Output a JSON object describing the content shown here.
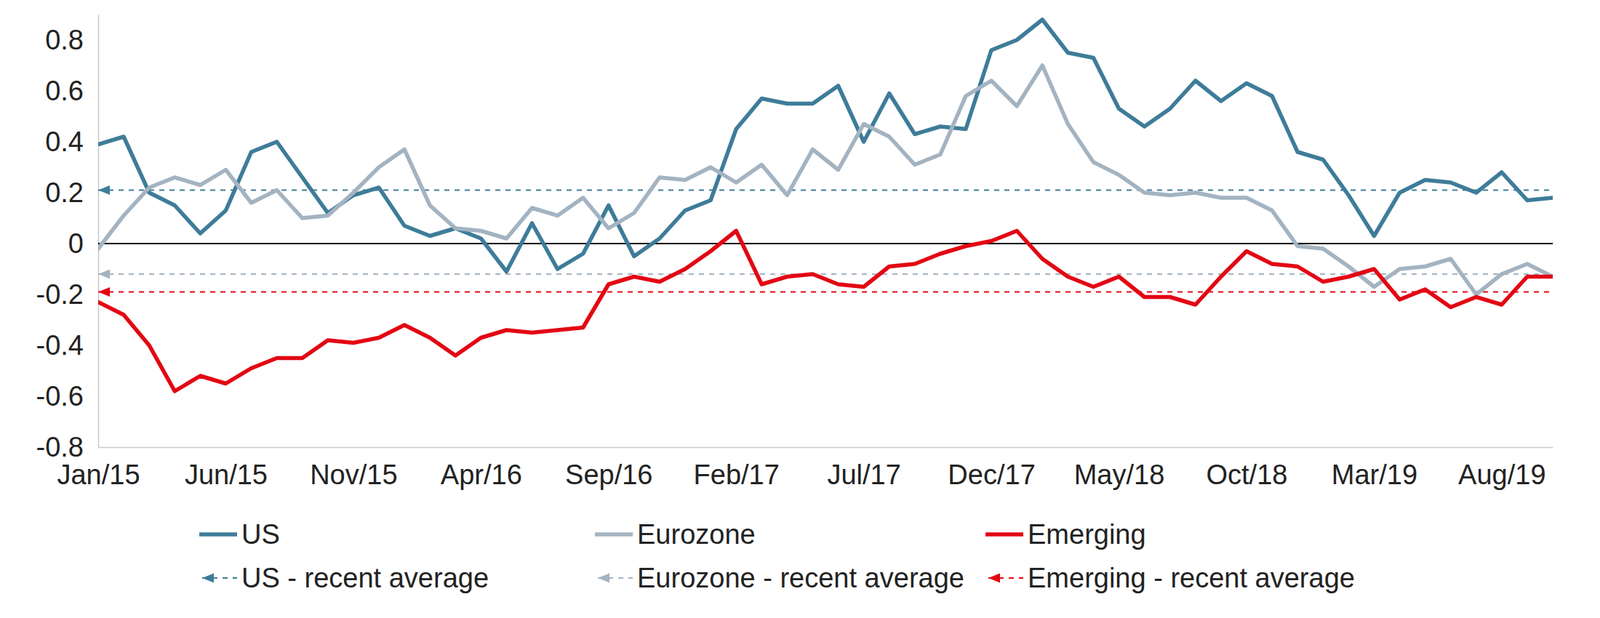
{
  "chart_data": {
    "type": "line",
    "categories": [
      "Jan/15",
      null,
      null,
      null,
      null,
      "Jun/15",
      null,
      null,
      null,
      null,
      "Nov/15",
      null,
      null,
      null,
      null,
      "Apr/16",
      null,
      null,
      null,
      null,
      "Sep/16",
      null,
      null,
      null,
      null,
      "Feb/17",
      null,
      null,
      null,
      null,
      "Jul/17",
      null,
      null,
      null,
      null,
      "Dec/17",
      null,
      null,
      null,
      null,
      "May/18",
      null,
      null,
      null,
      null,
      "Oct/18",
      null,
      null,
      null,
      null,
      "Mar/19",
      null,
      null,
      null,
      null,
      "Aug/19",
      null,
      null
    ],
    "ylim": [
      -0.8,
      0.9
    ],
    "yticks": [
      -0.8,
      -0.6,
      -0.4,
      -0.2,
      0,
      0.2,
      0.4,
      0.6,
      0.8
    ],
    "grid": false,
    "legend": "bottom",
    "series": [
      {
        "name": "US",
        "color": "#3e7c99",
        "line_style": "solid",
        "marker": "none",
        "values": [
          0.39,
          0.42,
          0.2,
          0.15,
          0.04,
          0.13,
          0.36,
          0.4,
          0.26,
          0.12,
          0.19,
          0.22,
          0.07,
          0.03,
          0.06,
          0.02,
          -0.11,
          0.08,
          -0.1,
          -0.04,
          0.15,
          -0.05,
          0.02,
          0.13,
          0.17,
          0.45,
          0.57,
          0.55,
          0.55,
          0.62,
          0.4,
          0.59,
          0.43,
          0.46,
          0.45,
          0.76,
          0.8,
          0.88,
          0.75,
          0.73,
          0.53,
          0.46,
          0.53,
          0.64,
          0.56,
          0.63,
          0.58,
          0.36,
          0.33,
          0.19,
          0.03,
          0.2,
          0.25,
          0.24,
          0.2,
          0.28,
          0.17,
          0.18
        ]
      },
      {
        "name": "Eurozone",
        "color": "#a3b3c1",
        "line_style": "solid",
        "marker": "none",
        "values": [
          -0.02,
          0.11,
          0.22,
          0.26,
          0.23,
          0.29,
          0.16,
          0.21,
          0.1,
          0.11,
          0.2,
          0.3,
          0.37,
          0.15,
          0.06,
          0.05,
          0.02,
          0.14,
          0.11,
          0.18,
          0.06,
          0.12,
          0.26,
          0.25,
          0.3,
          0.24,
          0.31,
          0.19,
          0.37,
          0.29,
          0.47,
          0.42,
          0.31,
          0.35,
          0.58,
          0.64,
          0.54,
          0.7,
          0.47,
          0.32,
          0.27,
          0.2,
          0.19,
          0.2,
          0.18,
          0.18,
          0.13,
          -0.01,
          -0.02,
          -0.09,
          -0.17,
          -0.1,
          -0.09,
          -0.06,
          -0.2,
          -0.12,
          -0.08,
          -0.13
        ]
      },
      {
        "name": "Emerging",
        "color": "#e30613",
        "line_style": "solid",
        "marker": "none",
        "values": [
          -0.23,
          -0.28,
          -0.4,
          -0.58,
          -0.52,
          -0.55,
          -0.49,
          -0.45,
          -0.45,
          -0.38,
          -0.39,
          -0.37,
          -0.32,
          -0.37,
          -0.44,
          -0.37,
          -0.34,
          -0.35,
          -0.34,
          -0.33,
          -0.16,
          -0.13,
          -0.15,
          -0.1,
          -0.03,
          0.05,
          -0.16,
          -0.13,
          -0.12,
          -0.16,
          -0.17,
          -0.09,
          -0.08,
          -0.04,
          -0.01,
          0.01,
          0.05,
          -0.06,
          -0.13,
          -0.17,
          -0.13,
          -0.21,
          -0.21,
          -0.24,
          -0.13,
          -0.03,
          -0.08,
          -0.09,
          -0.15,
          -0.13,
          -0.1,
          -0.22,
          -0.18,
          -0.25,
          -0.21,
          -0.24,
          -0.13,
          -0.13
        ]
      },
      {
        "name": "US - recent average",
        "color": "#3e7c99",
        "line_style": "dashed",
        "marker": "arrow",
        "values": [
          0.21,
          0.21,
          0.21,
          0.21,
          0.21,
          0.21,
          0.21,
          0.21,
          0.21,
          0.21,
          0.21,
          0.21,
          0.21,
          0.21,
          0.21,
          0.21,
          0.21,
          0.21,
          0.21,
          0.21,
          0.21,
          0.21,
          0.21,
          0.21,
          0.21,
          0.21,
          0.21,
          0.21,
          0.21,
          0.21,
          0.21,
          0.21,
          0.21,
          0.21,
          0.21,
          0.21,
          0.21,
          0.21,
          0.21,
          0.21,
          0.21,
          0.21,
          0.21,
          0.21,
          0.21,
          0.21,
          0.21,
          0.21,
          0.21,
          0.21,
          0.21,
          0.21,
          0.21,
          0.21,
          0.21,
          0.21,
          0.21,
          0.21
        ]
      },
      {
        "name": "Eurozone - recent average",
        "color": "#a3b3c1",
        "line_style": "dashed",
        "marker": "arrow",
        "values": [
          -0.12,
          -0.12,
          -0.12,
          -0.12,
          -0.12,
          -0.12,
          -0.12,
          -0.12,
          -0.12,
          -0.12,
          -0.12,
          -0.12,
          -0.12,
          -0.12,
          -0.12,
          -0.12,
          -0.12,
          -0.12,
          -0.12,
          -0.12,
          -0.12,
          -0.12,
          -0.12,
          -0.12,
          -0.12,
          -0.12,
          -0.12,
          -0.12,
          -0.12,
          -0.12,
          -0.12,
          -0.12,
          -0.12,
          -0.12,
          -0.12,
          -0.12,
          -0.12,
          -0.12,
          -0.12,
          -0.12,
          -0.12,
          -0.12,
          -0.12,
          -0.12,
          -0.12,
          -0.12,
          -0.12,
          -0.12,
          -0.12,
          -0.12,
          -0.12,
          -0.12,
          -0.12,
          -0.12,
          -0.12,
          -0.12,
          -0.12,
          -0.12
        ]
      },
      {
        "name": "Emerging - recent average",
        "color": "#e30613",
        "line_style": "dashed",
        "marker": "arrow",
        "values": [
          -0.19,
          -0.19,
          -0.19,
          -0.19,
          -0.19,
          -0.19,
          -0.19,
          -0.19,
          -0.19,
          -0.19,
          -0.19,
          -0.19,
          -0.19,
          -0.19,
          -0.19,
          -0.19,
          -0.19,
          -0.19,
          -0.19,
          -0.19,
          -0.19,
          -0.19,
          -0.19,
          -0.19,
          -0.19,
          -0.19,
          -0.19,
          -0.19,
          -0.19,
          -0.19,
          -0.19,
          -0.19,
          -0.19,
          -0.19,
          -0.19,
          -0.19,
          -0.19,
          -0.19,
          -0.19,
          -0.19,
          -0.19,
          -0.19,
          -0.19,
          -0.19,
          -0.19,
          -0.19,
          -0.19,
          -0.19,
          -0.19,
          -0.19,
          -0.19,
          -0.19,
          -0.19,
          -0.19,
          -0.19,
          -0.19,
          -0.19,
          -0.19
        ]
      }
    ]
  }
}
